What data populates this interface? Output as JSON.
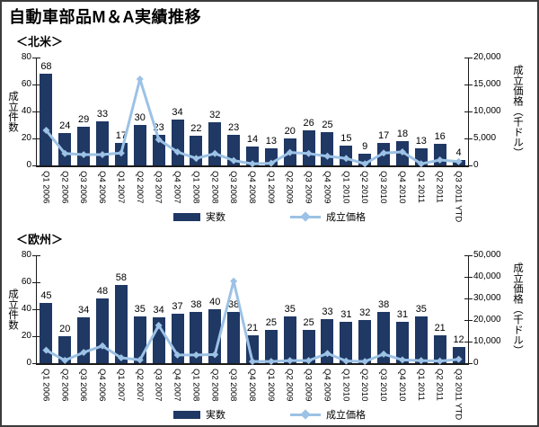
{
  "page": {
    "title": "自動車部品M＆A実績推移"
  },
  "legend_colors": {
    "bar": "#1F3864",
    "line": "#9CC2E5"
  },
  "chart_data": [
    {
      "type": "bar",
      "section_label": "＜北米＞",
      "categories": [
        "Q1 2006",
        "Q2 2006",
        "Q3 2006",
        "Q4 2006",
        "Q1 2007",
        "Q2 2007",
        "Q3 2007",
        "Q4 2007",
        "Q1 2008",
        "Q2 2008",
        "Q3 2008",
        "Q4 2008",
        "Q1 2009",
        "Q2 2009",
        "Q3 2009",
        "Q4 2009",
        "Q1 2010",
        "Q2 2010",
        "Q3 2010",
        "Q4 2010",
        "Q1 2011",
        "Q2 2011",
        "Q3 2011 YTD"
      ],
      "left_axis": {
        "title": "成立件数",
        "ticks": [
          0,
          20,
          40,
          60,
          80
        ],
        "tick_labels": [
          "0",
          "20",
          "40",
          "60",
          "80"
        ],
        "ylim": [
          0,
          80
        ]
      },
      "right_axis": {
        "title": "成立価格（千ドル）",
        "ticks": [
          0,
          5000,
          10000,
          15000,
          20000
        ],
        "tick_labels": [
          "0",
          "5,000",
          "10,000",
          "15,000",
          "20,000"
        ],
        "ylim": [
          0,
          20000
        ]
      },
      "series": [
        {
          "name": "実数",
          "type": "bar",
          "axis": "left",
          "color": "#1F3864",
          "values": [
            68,
            24,
            29,
            33,
            17,
            30,
            23,
            34,
            22,
            32,
            23,
            14,
            13,
            20,
            26,
            25,
            15,
            9,
            17,
            18,
            13,
            16,
            4
          ]
        },
        {
          "name": "成立価格",
          "type": "line",
          "axis": "right",
          "color": "#9CC2E5",
          "values": [
            6500,
            2200,
            2000,
            2000,
            2300,
            16000,
            4800,
            2500,
            1300,
            2200,
            900,
            300,
            400,
            2400,
            2200,
            1700,
            1300,
            300,
            2300,
            2500,
            300,
            1000,
            700
          ]
        }
      ],
      "legend_position": "bottom",
      "grid": false,
      "data_labels": true
    },
    {
      "type": "bar",
      "section_label": "＜欧州＞",
      "categories": [
        "Q1 2006",
        "Q2 2006",
        "Q3 2006",
        "Q4 2006",
        "Q1 2007",
        "Q2 2007",
        "Q3 2007",
        "Q4 2007",
        "Q1 2008",
        "Q2 2008",
        "Q3 2008",
        "Q4 2008",
        "Q1 2009",
        "Q2 2009",
        "Q3 2009",
        "Q4 2009",
        "Q1 2010",
        "Q2 2010",
        "Q3 2010",
        "Q4 2010",
        "Q1 2011",
        "Q2 2011",
        "Q3 2011 YTD"
      ],
      "left_axis": {
        "title": "成立件数",
        "ticks": [
          0,
          20,
          40,
          60,
          80
        ],
        "tick_labels": [
          "0",
          "20",
          "40",
          "60",
          "80"
        ],
        "ylim": [
          0,
          80
        ]
      },
      "right_axis": {
        "title": "成立価格（千ドル）",
        "ticks": [
          0,
          10000,
          20000,
          30000,
          40000,
          50000
        ],
        "tick_labels": [
          "0",
          "10,000",
          "20,000",
          "30,000",
          "40,000",
          "50,000"
        ],
        "ylim": [
          0,
          50000
        ]
      },
      "series": [
        {
          "name": "実数",
          "type": "bar",
          "axis": "left",
          "color": "#1F3864",
          "values": [
            45,
            20,
            34,
            48,
            58,
            35,
            34,
            37,
            38,
            40,
            38,
            21,
            25,
            35,
            25,
            33,
            31,
            32,
            38,
            31,
            35,
            21,
            12
          ]
        },
        {
          "name": "成立価格",
          "type": "line",
          "axis": "right",
          "color": "#9CC2E5",
          "values": [
            6000,
            1300,
            5000,
            8000,
            2500,
            1500,
            17500,
            3800,
            3800,
            4000,
            38000,
            800,
            800,
            1200,
            1200,
            4500,
            1000,
            800,
            4200,
            1500,
            1200,
            1000,
            1800
          ]
        }
      ],
      "legend_position": "bottom",
      "grid": false,
      "data_labels": true
    }
  ]
}
